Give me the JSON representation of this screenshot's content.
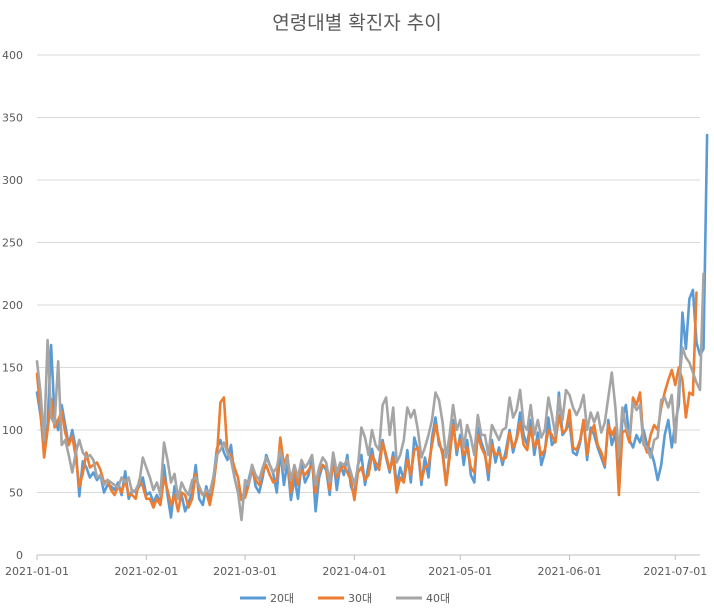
{
  "chart_data": {
    "type": "line",
    "title": "연령대별 확진자 추이",
    "xlabel": "",
    "ylabel": "",
    "ylim": [
      0,
      400
    ],
    "y_ticks": [
      0,
      50,
      100,
      150,
      200,
      250,
      300,
      350,
      400
    ],
    "x_start": "2021-01-01",
    "x_end": "2021-07-07",
    "x_ticks": [
      {
        "label": "2021-01-01",
        "day": 0
      },
      {
        "label": "2021-02-01",
        "day": 31
      },
      {
        "label": "2021-03-01",
        "day": 59
      },
      {
        "label": "2021-04-01",
        "day": 90
      },
      {
        "label": "2021-05-01",
        "day": 120
      },
      {
        "label": "2021-06-01",
        "day": 151
      },
      {
        "label": "2021-07-01",
        "day": 181
      }
    ],
    "grid": true,
    "legend_position": "bottom",
    "series": [
      {
        "name": "20대",
        "color": "#5B9BD5",
        "values": [
          130,
          112,
          85,
          105,
          168,
          110,
          100,
          120,
          104,
          88,
          100,
          85,
          47,
          75,
          70,
          62,
          66,
          60,
          64,
          50,
          56,
          55,
          52,
          58,
          48,
          67,
          45,
          52,
          50,
          55,
          62,
          48,
          50,
          42,
          48,
          42,
          72,
          48,
          30,
          55,
          45,
          48,
          35,
          42,
          50,
          72,
          45,
          40,
          55,
          44,
          60,
          85,
          92,
          82,
          76,
          88,
          62,
          50,
          48,
          48,
          60,
          72,
          55,
          50,
          62,
          80,
          72,
          65,
          50,
          84,
          56,
          74,
          44,
          62,
          45,
          74,
          58,
          64,
          78,
          35,
          62,
          72,
          68,
          48,
          78,
          52,
          72,
          64,
          80,
          55,
          48,
          72,
          80,
          56,
          72,
          85,
          68,
          74,
          92,
          78,
          66,
          82,
          56,
          70,
          60,
          84,
          58,
          94,
          84,
          56,
          78,
          62,
          94,
          110,
          88,
          84,
          56,
          82,
          108,
          80,
          96,
          72,
          92,
          64,
          58,
          102,
          90,
          82,
          60,
          92,
          74,
          86,
          72,
          84,
          100,
          82,
          94,
          114,
          96,
          88,
          108,
          80,
          98,
          72,
          82,
          110,
          88,
          92,
          130,
          96,
          100,
          106,
          82,
          80,
          90,
          108,
          76,
          102,
          96,
          86,
          78,
          70,
          108,
          88,
          98,
          60,
          110,
          120,
          92,
          86,
          96,
          90,
          100,
          88,
          84,
          74,
          60,
          72,
          96,
          108,
          86,
          106,
          120,
          194,
          165,
          205,
          212,
          170,
          160,
          165,
          336
        ]
      },
      {
        "name": "30대",
        "color": "#ED7D31",
        "values": [
          145,
          115,
          78,
          100,
          125,
          102,
          108,
          115,
          98,
          88,
          95,
          78,
          55,
          65,
          82,
          70,
          72,
          74,
          68,
          58,
          60,
          52,
          48,
          55,
          50,
          60,
          48,
          48,
          45,
          60,
          55,
          45,
          45,
          38,
          45,
          40,
          62,
          52,
          40,
          48,
          35,
          50,
          48,
          38,
          45,
          65,
          52,
          48,
          50,
          40,
          55,
          78,
          122,
          126,
          82,
          80,
          70,
          62,
          44,
          46,
          56,
          68,
          60,
          56,
          66,
          72,
          64,
          58,
          60,
          94,
          72,
          80,
          50,
          68,
          56,
          68,
          64,
          68,
          72,
          50,
          66,
          72,
          70,
          52,
          76,
          62,
          68,
          72,
          66,
          60,
          44,
          66,
          70,
          60,
          64,
          80,
          74,
          68,
          90,
          80,
          68,
          78,
          50,
          62,
          58,
          76,
          64,
          84,
          86,
          60,
          70,
          72,
          88,
          104,
          92,
          80,
          56,
          78,
          104,
          84,
          92,
          80,
          86,
          70,
          66,
          96,
          86,
          80,
          66,
          88,
          80,
          82,
          76,
          78,
          98,
          86,
          92,
          106,
          88,
          84,
          102,
          86,
          92,
          80,
          84,
          100,
          96,
          90,
          112,
          98,
          100,
          116,
          86,
          84,
          92,
          108,
          80,
          98,
          104,
          88,
          82,
          72,
          104,
          96,
          102,
          48,
          98,
          100,
          90,
          126,
          120,
          130,
          90,
          82,
          96,
          104,
          100,
          118,
          130,
          140,
          148,
          136,
          150,
          140,
          110,
          130,
          128,
          210
        ]
      },
      {
        "name": "40대",
        "color": "#A5A5A5",
        "values": [
          155,
          130,
          92,
          172,
          110,
          105,
          155,
          88,
          92,
          80,
          66,
          82,
          92,
          82,
          78,
          80,
          76,
          62,
          64,
          56,
          60,
          58,
          56,
          54,
          62,
          58,
          62,
          50,
          52,
          58,
          78,
          70,
          62,
          52,
          58,
          48,
          90,
          76,
          58,
          65,
          45,
          58,
          52,
          48,
          60,
          62,
          55,
          48,
          52,
          50,
          62,
          80,
          84,
          90,
          82,
          76,
          62,
          50,
          28,
          60,
          56,
          72,
          64,
          60,
          70,
          78,
          72,
          66,
          70,
          84,
          68,
          78,
          60,
          72,
          62,
          76,
          70,
          74,
          80,
          56,
          70,
          78,
          74,
          58,
          82,
          66,
          74,
          72,
          76,
          66,
          56,
          70,
          102,
          94,
          80,
          100,
          88,
          84,
          120,
          126,
          96,
          118,
          74,
          80,
          92,
          118,
          110,
          116,
          100,
          78,
          86,
          96,
          108,
          130,
          124,
          106,
          78,
          96,
          120,
          100,
          108,
          86,
          104,
          94,
          80,
          112,
          96,
          96,
          80,
          104,
          98,
          92,
          100,
          102,
          126,
          110,
          116,
          132,
          104,
          100,
          120,
          96,
          108,
          94,
          100,
          126,
          112,
          96,
          126,
          108,
          132,
          128,
          118,
          112,
          118,
          128,
          100,
          114,
          106,
          114,
          98,
          106,
          126,
          146,
          118,
          80,
          118,
          102,
          96,
          122,
          116,
          120,
          88,
          86,
          78,
          92,
          94,
          124,
          126,
          118,
          128,
          90,
          134,
          166,
          158,
          154,
          146,
          138,
          132,
          225
        ]
      }
    ]
  }
}
